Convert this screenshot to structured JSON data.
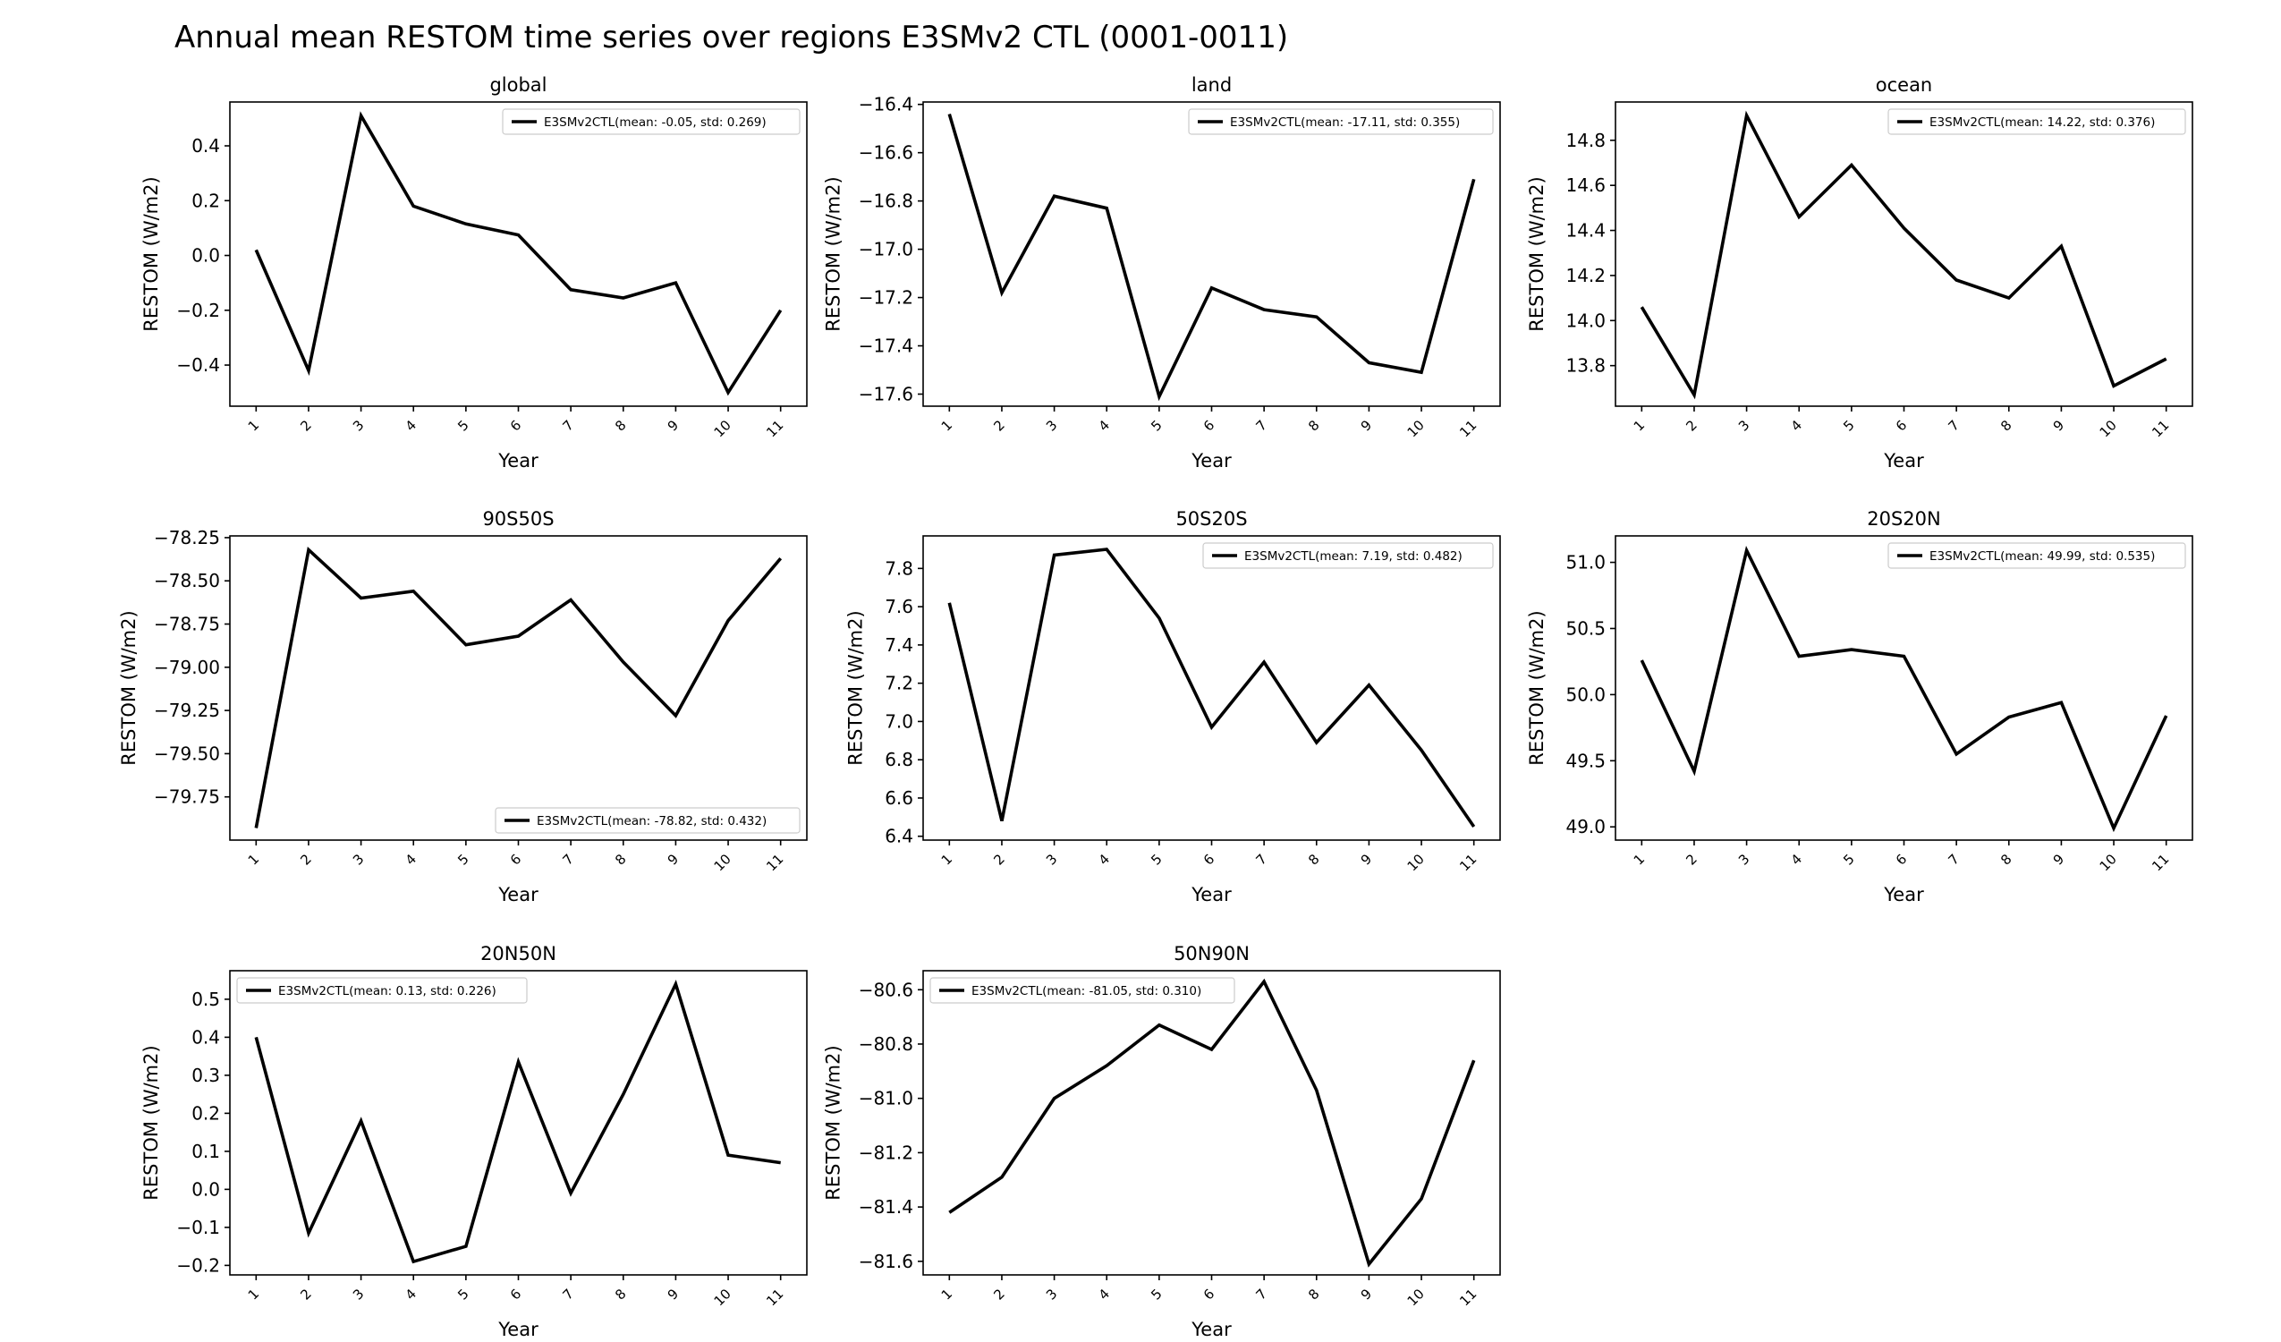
{
  "figure": {
    "title": "Annual mean RESTOM time series over regions E3SMv2 CTL (0001-0011)"
  },
  "chart_data": [
    {
      "type": "line",
      "title": "global",
      "xlabel": "Year",
      "ylabel": "RESTOM (W/m2)",
      "x": [
        1,
        2,
        3,
        4,
        5,
        6,
        7,
        8,
        9,
        10,
        11
      ],
      "series": [
        {
          "name": "E3SMv2CTL(mean: -0.05, std: 0.269)",
          "values": [
            0.02,
            -0.42,
            0.51,
            0.18,
            0.115,
            0.075,
            -0.125,
            -0.155,
            -0.1,
            -0.5,
            -0.2
          ]
        }
      ],
      "ylim": [
        -0.55,
        0.56
      ],
      "yticks": [
        -0.4,
        -0.2,
        0.0,
        0.2,
        0.4
      ],
      "ytick_labels": [
        "−0.4",
        "−0.2",
        "0.0",
        "0.2",
        "0.4"
      ],
      "legend": "upper right",
      "grid": false
    },
    {
      "type": "line",
      "title": "land",
      "xlabel": "Year",
      "ylabel": "RESTOM (W/m2)",
      "x": [
        1,
        2,
        3,
        4,
        5,
        6,
        7,
        8,
        9,
        10,
        11
      ],
      "series": [
        {
          "name": "E3SMv2CTL(mean: -17.11, std: 0.355)",
          "values": [
            -16.44,
            -17.18,
            -16.78,
            -16.83,
            -17.61,
            -17.16,
            -17.25,
            -17.28,
            -17.47,
            -17.51,
            -16.71
          ]
        }
      ],
      "ylim": [
        -17.65,
        -16.39
      ],
      "yticks": [
        -17.6,
        -17.4,
        -17.2,
        -17.0,
        -16.8,
        -16.6,
        -16.4
      ],
      "ytick_labels": [
        "−17.6",
        "−17.4",
        "−17.2",
        "−17.0",
        "−16.8",
        "−16.6",
        "−16.4"
      ],
      "legend": "upper right",
      "grid": false
    },
    {
      "type": "line",
      "title": "ocean",
      "xlabel": "Year",
      "ylabel": "RESTOM (W/m2)",
      "x": [
        1,
        2,
        3,
        4,
        5,
        6,
        7,
        8,
        9,
        10,
        11
      ],
      "series": [
        {
          "name": "E3SMv2CTL(mean: 14.22, std: 0.376)",
          "values": [
            14.06,
            13.67,
            14.91,
            14.46,
            14.69,
            14.41,
            14.18,
            14.1,
            14.33,
            13.71,
            13.83
          ]
        }
      ],
      "ylim": [
        13.62,
        14.97
      ],
      "yticks": [
        13.8,
        14.0,
        14.2,
        14.4,
        14.6,
        14.8
      ],
      "ytick_labels": [
        "13.8",
        "14.0",
        "14.2",
        "14.4",
        "14.6",
        "14.8"
      ],
      "legend": "upper right",
      "grid": false
    },
    {
      "type": "line",
      "title": "90S50S",
      "xlabel": "Year",
      "ylabel": "RESTOM (W/m2)",
      "x": [
        1,
        2,
        3,
        4,
        5,
        6,
        7,
        8,
        9,
        10,
        11
      ],
      "series": [
        {
          "name": "E3SMv2CTL(mean: -78.82, std: 0.432)",
          "values": [
            -79.93,
            -78.32,
            -78.6,
            -78.56,
            -78.87,
            -78.82,
            -78.61,
            -78.97,
            -79.28,
            -78.73,
            -78.37
          ]
        }
      ],
      "ylim": [
        -80.0,
        -78.24
      ],
      "yticks": [
        -79.75,
        -79.5,
        -79.25,
        -79.0,
        -78.75,
        -78.5,
        -78.25
      ],
      "ytick_labels": [
        "−79.75",
        "−79.50",
        "−79.25",
        "−79.00",
        "−78.75",
        "−78.50",
        "−78.25"
      ],
      "legend": "lower right",
      "grid": false
    },
    {
      "type": "line",
      "title": "50S20S",
      "xlabel": "Year",
      "ylabel": "RESTOM (W/m2)",
      "x": [
        1,
        2,
        3,
        4,
        5,
        6,
        7,
        8,
        9,
        10,
        11
      ],
      "series": [
        {
          "name": "E3SMv2CTL(mean: 7.19, std: 0.482)",
          "values": [
            7.62,
            6.48,
            7.87,
            7.9,
            7.54,
            6.97,
            7.31,
            6.89,
            7.19,
            6.85,
            6.45
          ]
        }
      ],
      "ylim": [
        6.38,
        7.97
      ],
      "yticks": [
        6.4,
        6.6,
        6.8,
        7.0,
        7.2,
        7.4,
        7.6,
        7.8
      ],
      "ytick_labels": [
        "6.4",
        "6.6",
        "6.8",
        "7.0",
        "7.2",
        "7.4",
        "7.6",
        "7.8"
      ],
      "legend": "upper right",
      "grid": false
    },
    {
      "type": "line",
      "title": "20S20N",
      "xlabel": "Year",
      "ylabel": "RESTOM (W/m2)",
      "x": [
        1,
        2,
        3,
        4,
        5,
        6,
        7,
        8,
        9,
        10,
        11
      ],
      "series": [
        {
          "name": "E3SMv2CTL(mean: 49.99, std: 0.535)",
          "values": [
            50.26,
            49.42,
            51.09,
            50.29,
            50.34,
            50.29,
            49.55,
            49.83,
            49.94,
            48.99,
            49.84
          ]
        }
      ],
      "ylim": [
        48.9,
        51.2
      ],
      "yticks": [
        49.0,
        49.5,
        50.0,
        50.5,
        51.0
      ],
      "ytick_labels": [
        "49.0",
        "49.5",
        "50.0",
        "50.5",
        "51.0"
      ],
      "legend": "upper right",
      "grid": false
    },
    {
      "type": "line",
      "title": "20N50N",
      "xlabel": "Year",
      "ylabel": "RESTOM (W/m2)",
      "x": [
        1,
        2,
        3,
        4,
        5,
        6,
        7,
        8,
        9,
        10,
        11
      ],
      "series": [
        {
          "name": "E3SMv2CTL(mean: 0.13, std: 0.226)",
          "values": [
            0.4,
            -0.115,
            0.18,
            -0.19,
            -0.15,
            0.335,
            -0.01,
            0.25,
            0.54,
            0.09,
            0.07
          ]
        }
      ],
      "ylim": [
        -0.225,
        0.575
      ],
      "yticks": [
        -0.2,
        -0.1,
        0.0,
        0.1,
        0.2,
        0.3,
        0.4,
        0.5
      ],
      "ytick_labels": [
        "−0.2",
        "−0.1",
        "0.0",
        "0.1",
        "0.2",
        "0.3",
        "0.4",
        "0.5"
      ],
      "legend": "upper left",
      "grid": false
    },
    {
      "type": "line",
      "title": "50N90N",
      "xlabel": "Year",
      "ylabel": "RESTOM (W/m2)",
      "x": [
        1,
        2,
        3,
        4,
        5,
        6,
        7,
        8,
        9,
        10,
        11
      ],
      "series": [
        {
          "name": "E3SMv2CTL(mean: -81.05, std: 0.310)",
          "values": [
            -81.42,
            -81.29,
            -81.0,
            -80.88,
            -80.73,
            -80.82,
            -80.57,
            -80.97,
            -81.61,
            -81.37,
            -80.86
          ]
        }
      ],
      "ylim": [
        -81.65,
        -80.53
      ],
      "yticks": [
        -81.6,
        -81.4,
        -81.2,
        -81.0,
        -80.8,
        -80.6
      ],
      "ytick_labels": [
        "−81.6",
        "−81.4",
        "−81.2",
        "−81.0",
        "−80.8",
        "−80.6"
      ],
      "legend": "upper left",
      "grid": false
    }
  ]
}
